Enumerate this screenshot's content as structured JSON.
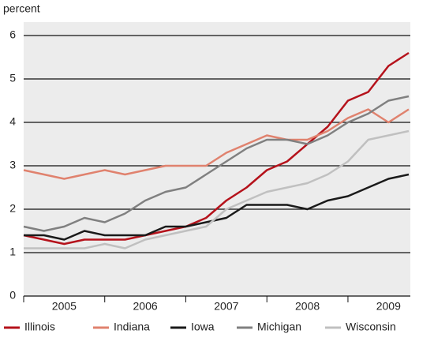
{
  "chart_data": {
    "type": "line",
    "y_label": "percent",
    "categories": [
      null,
      null,
      "2005",
      null,
      null,
      null,
      "2006",
      null,
      null,
      null,
      "2007",
      null,
      null,
      null,
      "2008",
      null,
      null,
      null,
      "2009",
      null
    ],
    "series": [
      {
        "name": "Illinois",
        "color": "#b5121b",
        "values": [
          1.4,
          1.3,
          1.2,
          1.3,
          1.3,
          1.3,
          1.4,
          1.5,
          1.6,
          1.8,
          2.2,
          2.5,
          2.9,
          3.1,
          3.5,
          3.9,
          4.5,
          4.7,
          5.3,
          5.6
        ]
      },
      {
        "name": "Indiana",
        "color": "#e0826e",
        "values": [
          2.9,
          2.8,
          2.7,
          2.8,
          2.9,
          2.8,
          2.9,
          3.0,
          3.0,
          3.0,
          3.3,
          3.5,
          3.7,
          3.6,
          3.6,
          3.8,
          4.1,
          4.3,
          4.0,
          4.3
        ]
      },
      {
        "name": "Iowa",
        "color": "#1a1a1a",
        "values": [
          1.4,
          1.4,
          1.3,
          1.5,
          1.4,
          1.4,
          1.4,
          1.6,
          1.6,
          1.7,
          1.8,
          2.1,
          2.1,
          2.1,
          2.0,
          2.2,
          2.3,
          2.5,
          2.7,
          2.8
        ]
      },
      {
        "name": "Michigan",
        "color": "#808080",
        "values": [
          1.6,
          1.5,
          1.6,
          1.8,
          1.7,
          1.9,
          2.2,
          2.4,
          2.5,
          2.8,
          3.1,
          3.4,
          3.6,
          3.6,
          3.5,
          3.7,
          4.0,
          4.2,
          4.5,
          4.6
        ]
      },
      {
        "name": "Wisconsin",
        "color": "#c0c0c0",
        "values": [
          1.1,
          1.1,
          1.1,
          1.1,
          1.2,
          1.1,
          1.3,
          1.4,
          1.5,
          1.6,
          2.0,
          2.2,
          2.4,
          2.5,
          2.6,
          2.8,
          3.1,
          3.6,
          3.7,
          3.8
        ]
      }
    ],
    "ylim": [
      0,
      6
    ],
    "yticks": [
      0,
      1,
      2,
      3,
      4,
      5,
      6
    ],
    "grid": true,
    "legend": "bottom"
  }
}
